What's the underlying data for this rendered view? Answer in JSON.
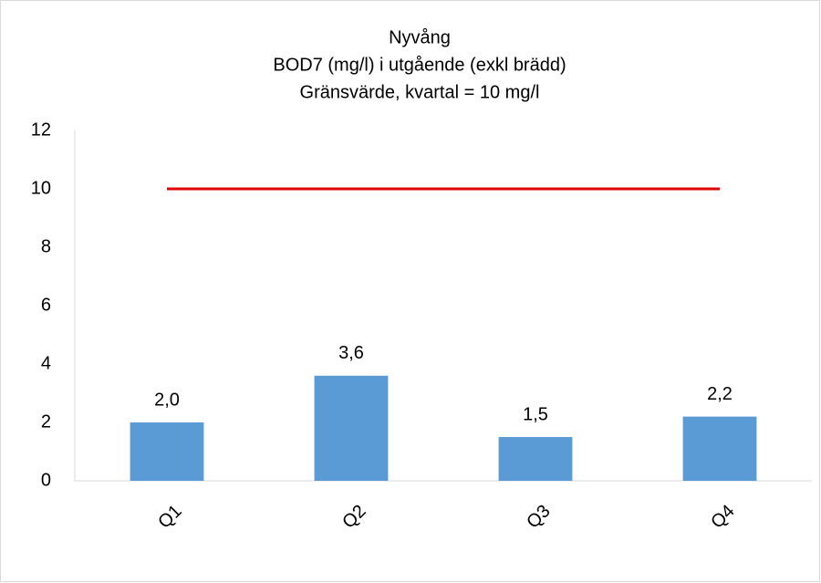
{
  "chart_data": {
    "type": "bar",
    "title": "Nyvång",
    "subtitle": [
      "BOD7 (mg/l) i utgående (exkl brädd)",
      "Gränsvärde, kvartal = 10 mg/l"
    ],
    "categories": [
      "Q1",
      "Q2",
      "Q3",
      "Q4"
    ],
    "series": [
      {
        "type": "bar",
        "color": "#5b9bd5",
        "values": [
          2.0,
          3.6,
          1.5,
          2.2
        ],
        "value_labels": [
          "2,0",
          "3,6",
          "1,5",
          "2,2"
        ]
      },
      {
        "type": "line",
        "color": "#e00000",
        "values": [
          10,
          10,
          10,
          10
        ]
      }
    ],
    "ylim": [
      0,
      12
    ],
    "yticks": [
      0,
      2,
      4,
      6,
      8,
      10,
      12
    ],
    "grid": false
  }
}
